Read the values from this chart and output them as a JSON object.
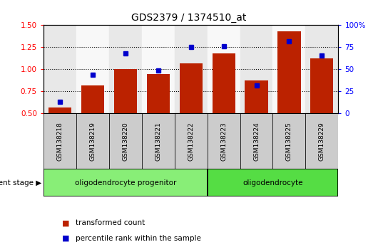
{
  "title": "GDS2379 / 1374510_at",
  "samples": [
    "GSM138218",
    "GSM138219",
    "GSM138220",
    "GSM138221",
    "GSM138222",
    "GSM138223",
    "GSM138224",
    "GSM138225",
    "GSM138229"
  ],
  "red_bars": [
    0.57,
    0.82,
    1.0,
    0.95,
    1.07,
    1.18,
    0.87,
    1.43,
    1.12
  ],
  "blue_dots": [
    0.635,
    0.94,
    1.18,
    0.985,
    1.255,
    1.265,
    0.815,
    1.32,
    1.155
  ],
  "ylim_left": [
    0.5,
    1.5
  ],
  "ylim_right": [
    0,
    100
  ],
  "yticks_left": [
    0.5,
    0.75,
    1.0,
    1.25,
    1.5
  ],
  "yticks_right": [
    0,
    25,
    50,
    75,
    100
  ],
  "bar_color": "#bb2200",
  "dot_color": "#0000cc",
  "group1_label": "oligodendrocyte progenitor",
  "group2_label": "oligodendrocyte",
  "group1_n": 5,
  "group2_n": 4,
  "group1_color": "#88ee77",
  "group2_color": "#55dd44",
  "xlabel_text": "development stage",
  "legend1": "transformed count",
  "legend2": "percentile rank within the sample",
  "bar_width": 0.7,
  "title_fontsize": 10,
  "tick_fontsize": 7.5,
  "label_fontsize": 7.5,
  "sample_label_fontsize": 6.5,
  "col_bg_odd": "#e8e8e8",
  "col_bg_even": "#f8f8f8",
  "white": "#ffffff"
}
